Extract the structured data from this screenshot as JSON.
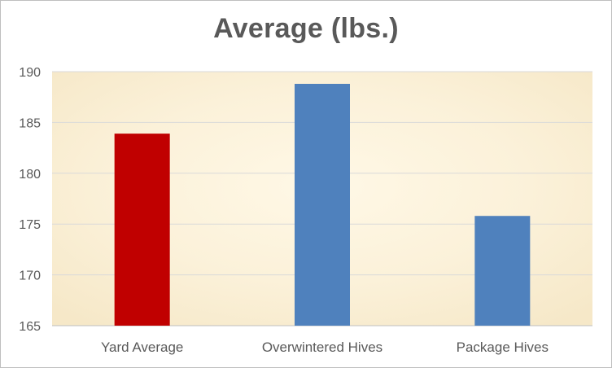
{
  "chart_data": {
    "type": "bar",
    "title": "Average (lbs.)",
    "categories": [
      "Yard Average",
      "Overwintered Hives",
      "Package Hives"
    ],
    "values": [
      183.9,
      188.8,
      175.8
    ],
    "bar_colors": [
      "#C00000",
      "#4F81BD",
      "#4F81BD"
    ],
    "ylim": [
      165,
      190
    ],
    "yticks": [
      165,
      170,
      175,
      180,
      185,
      190
    ],
    "grid": true,
    "plot_background": "#FAF0D8",
    "xlabel": "",
    "ylabel": ""
  }
}
